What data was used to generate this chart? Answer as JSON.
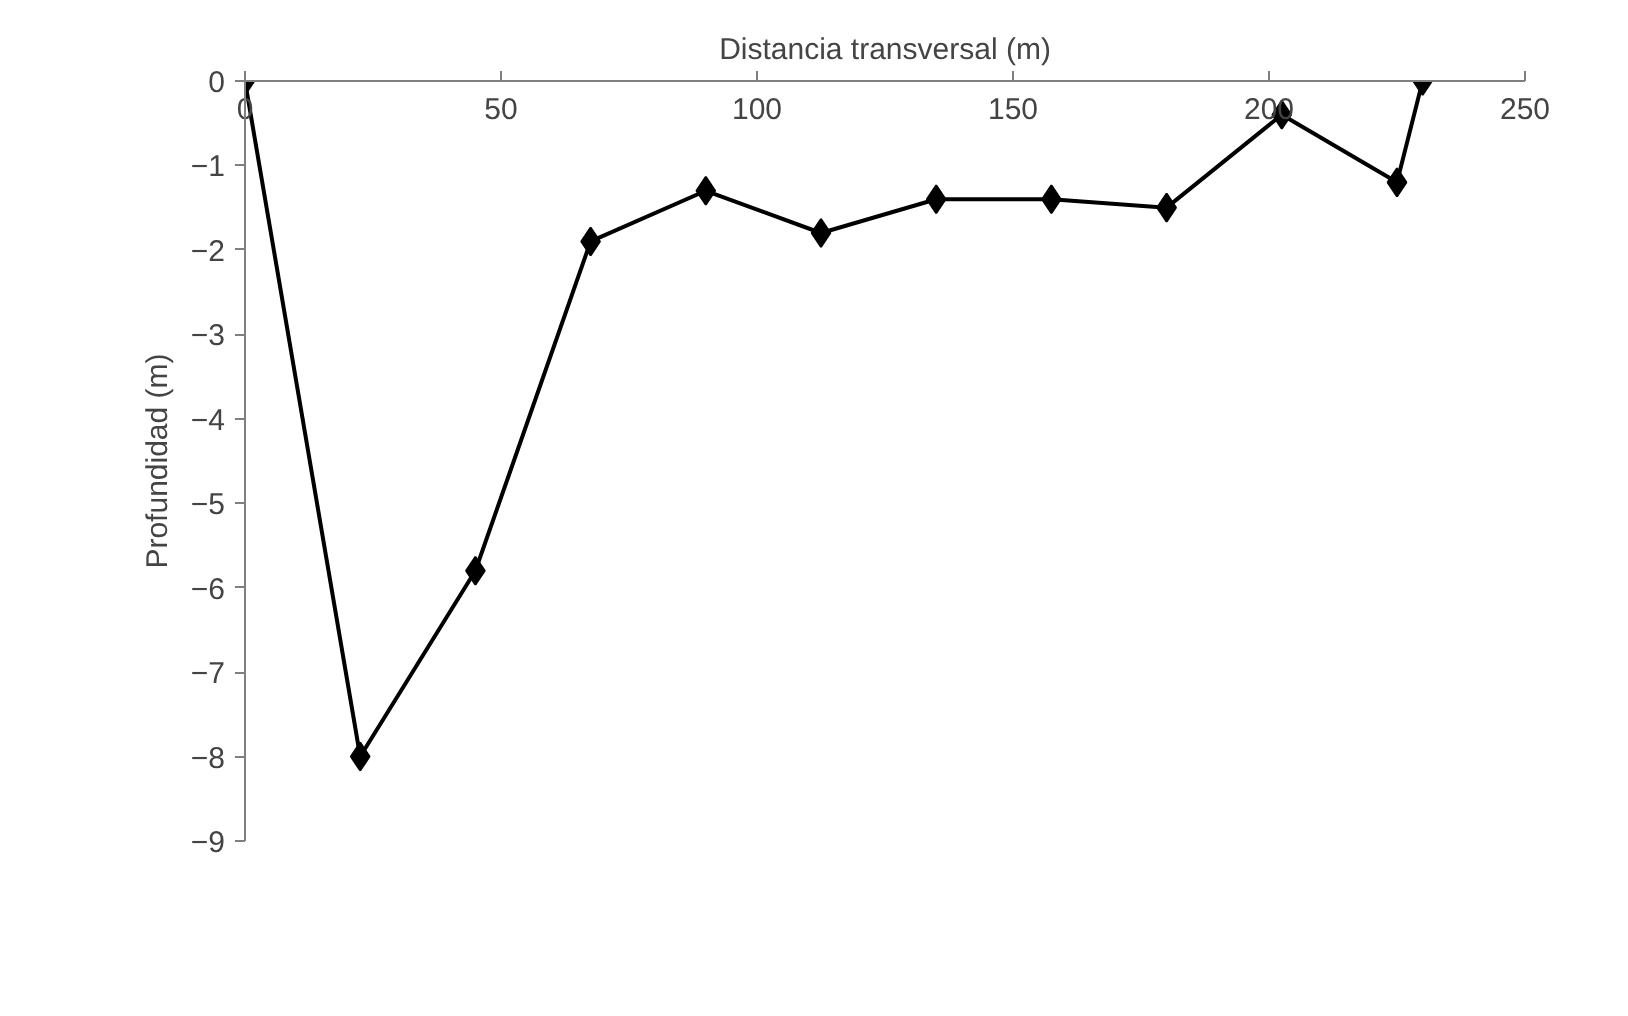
{
  "chart_data": {
    "type": "line",
    "xlabel": "Distancia transversal (m)",
    "ylabel": "Profundidad (m)",
    "x": [
      0,
      22.5,
      45,
      67.5,
      90,
      112.5,
      135,
      157.5,
      180,
      202.5,
      225,
      230
    ],
    "values": [
      0,
      -8,
      -5.8,
      -1.9,
      -1.3,
      -1.8,
      -1.4,
      -1.4,
      -1.5,
      -0.4,
      -1.2,
      0
    ],
    "color": "#000000",
    "marker": "diamond",
    "line_style": "solid",
    "xlim": [
      0,
      250
    ],
    "xticks": [
      0,
      50,
      100,
      150,
      200,
      250
    ],
    "ylim": [
      -9,
      0
    ],
    "yticks": [
      0,
      -1,
      -2,
      -3,
      -4,
      -5,
      -6,
      -7,
      -8,
      -9
    ]
  }
}
